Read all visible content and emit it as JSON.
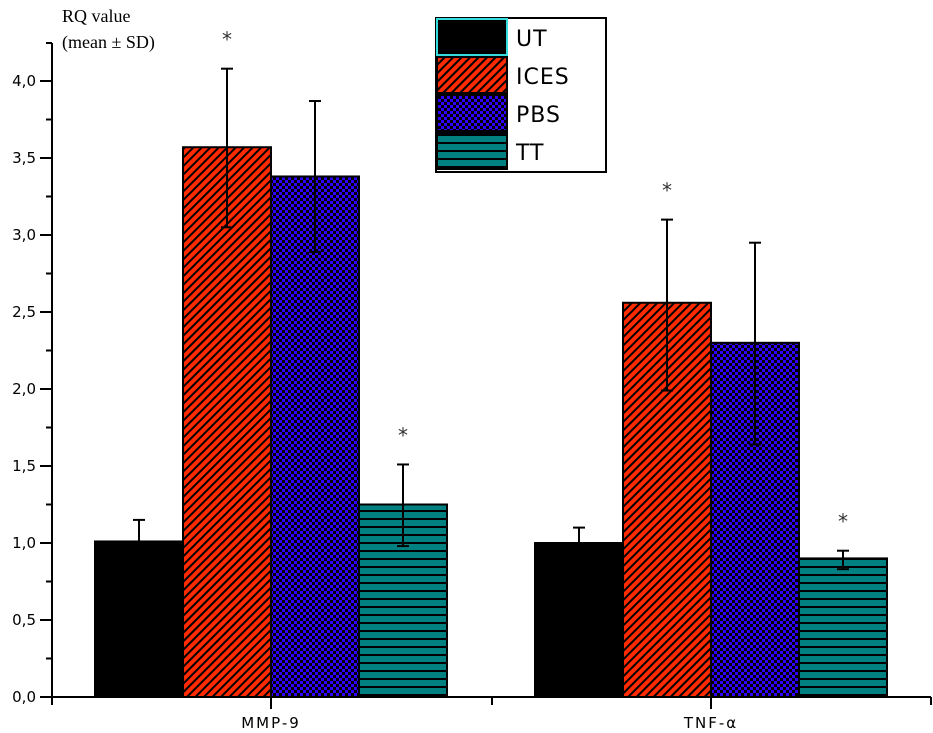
{
  "chart_data": {
    "type": "bar",
    "title": "",
    "ylabel_line1": "RQ value",
    "ylabel_line2": "(mean ± SD)",
    "xlabel": "",
    "ylim": [
      0,
      4.2
    ],
    "yticks": [
      0.0,
      0.5,
      1.0,
      1.5,
      2.0,
      2.5,
      3.0,
      3.5,
      4.0
    ],
    "ytick_labels": [
      "0,0",
      "0,5",
      "1,0",
      "1,5",
      "2,0",
      "2,5",
      "3,0",
      "3,5",
      "4,0"
    ],
    "grid": false,
    "legend_position": "top-center",
    "categories": [
      "MMP-9",
      "TNF-α"
    ],
    "series": [
      {
        "name": "UT",
        "color": "#000000",
        "pattern": "solid",
        "values": [
          1.01,
          1.0
        ],
        "error_upper": [
          1.15,
          1.1
        ],
        "error_lower": [
          null,
          null
        ],
        "significant": [
          false,
          false
        ]
      },
      {
        "name": "ICES",
        "color": "#ff2a00",
        "pattern": "diagonal-hatch",
        "values": [
          3.57,
          2.56
        ],
        "error_upper": [
          4.08,
          3.1
        ],
        "error_lower": [
          3.05,
          1.99
        ],
        "significant": [
          true,
          true
        ]
      },
      {
        "name": "PBS",
        "color": "#3300ff",
        "pattern": "checker",
        "values": [
          3.38,
          2.3
        ],
        "error_upper": [
          3.87,
          2.95
        ],
        "error_lower": [
          2.89,
          1.64
        ],
        "significant": [
          false,
          false
        ]
      },
      {
        "name": "TT",
        "color": "#008080",
        "pattern": "horizontal-lines",
        "values": [
          1.25,
          0.9
        ],
        "error_upper": [
          1.51,
          0.95
        ],
        "error_lower": [
          0.98,
          0.83
        ],
        "significant": [
          true,
          true
        ]
      }
    ],
    "significance_marker": "*"
  }
}
